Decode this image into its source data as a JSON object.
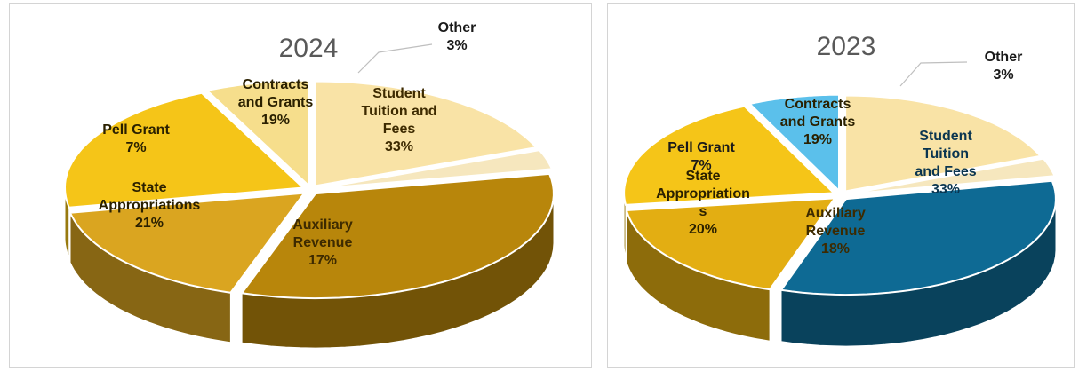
{
  "chart_data": [
    {
      "type": "pie",
      "title": "2024",
      "slices": [
        {
          "label": [
            "Student",
            "Tuition and",
            "Fees"
          ],
          "value": 33,
          "percent": "33%",
          "color": "#B8860B",
          "label_color": "#3d2a00"
        },
        {
          "label": [
            "Auxiliary",
            "Revenue"
          ],
          "value": 17,
          "percent": "17%",
          "color": "#DAA520",
          "label_color": "#3d2a00"
        },
        {
          "label": [
            "State",
            "Appropriations"
          ],
          "value": 21,
          "percent": "21%",
          "color": "#F5C518",
          "label_color": "#2a2000"
        },
        {
          "label": [
            "Pell Grant"
          ],
          "value": 7,
          "percent": "7%",
          "color": "#F6DE8C",
          "label_color": "#2a2000"
        },
        {
          "label": [
            "Contracts",
            "and Grants"
          ],
          "value": 19,
          "percent": "19%",
          "color": "#F9E3A6",
          "label_color": "#2a2000"
        },
        {
          "label": [
            "Other"
          ],
          "value": 3,
          "percent": "3%",
          "color": "#F6E7BE",
          "label_color": "#1a1a1a"
        }
      ]
    },
    {
      "type": "pie",
      "title": "2023",
      "slices": [
        {
          "label": [
            "Student",
            "Tuition",
            "and Fees"
          ],
          "value": 33,
          "percent": "33%",
          "color": "#0E6A94",
          "label_color": "#0a3550"
        },
        {
          "label": [
            "Auxiliary",
            "Revenue"
          ],
          "value": 18,
          "percent": "18%",
          "color": "#E3AE12",
          "label_color": "#3d2a00"
        },
        {
          "label": [
            "State",
            "Appropriation",
            "s"
          ],
          "value": 20,
          "percent": "20%",
          "color": "#F5C518",
          "label_color": "#2a2000"
        },
        {
          "label": [
            "Pell Grant"
          ],
          "value": 7,
          "percent": "7%",
          "color": "#5BC0EB",
          "label_color": "#1a1a1a"
        },
        {
          "label": [
            "Contracts",
            "and Grants"
          ],
          "value": 19,
          "percent": "19%",
          "color": "#F9E3A6",
          "label_color": "#2a2000"
        },
        {
          "label": [
            "Other"
          ],
          "value": 3,
          "percent": "3%",
          "color": "#F6E7BE",
          "label_color": "#1a1a1a"
        }
      ]
    }
  ]
}
